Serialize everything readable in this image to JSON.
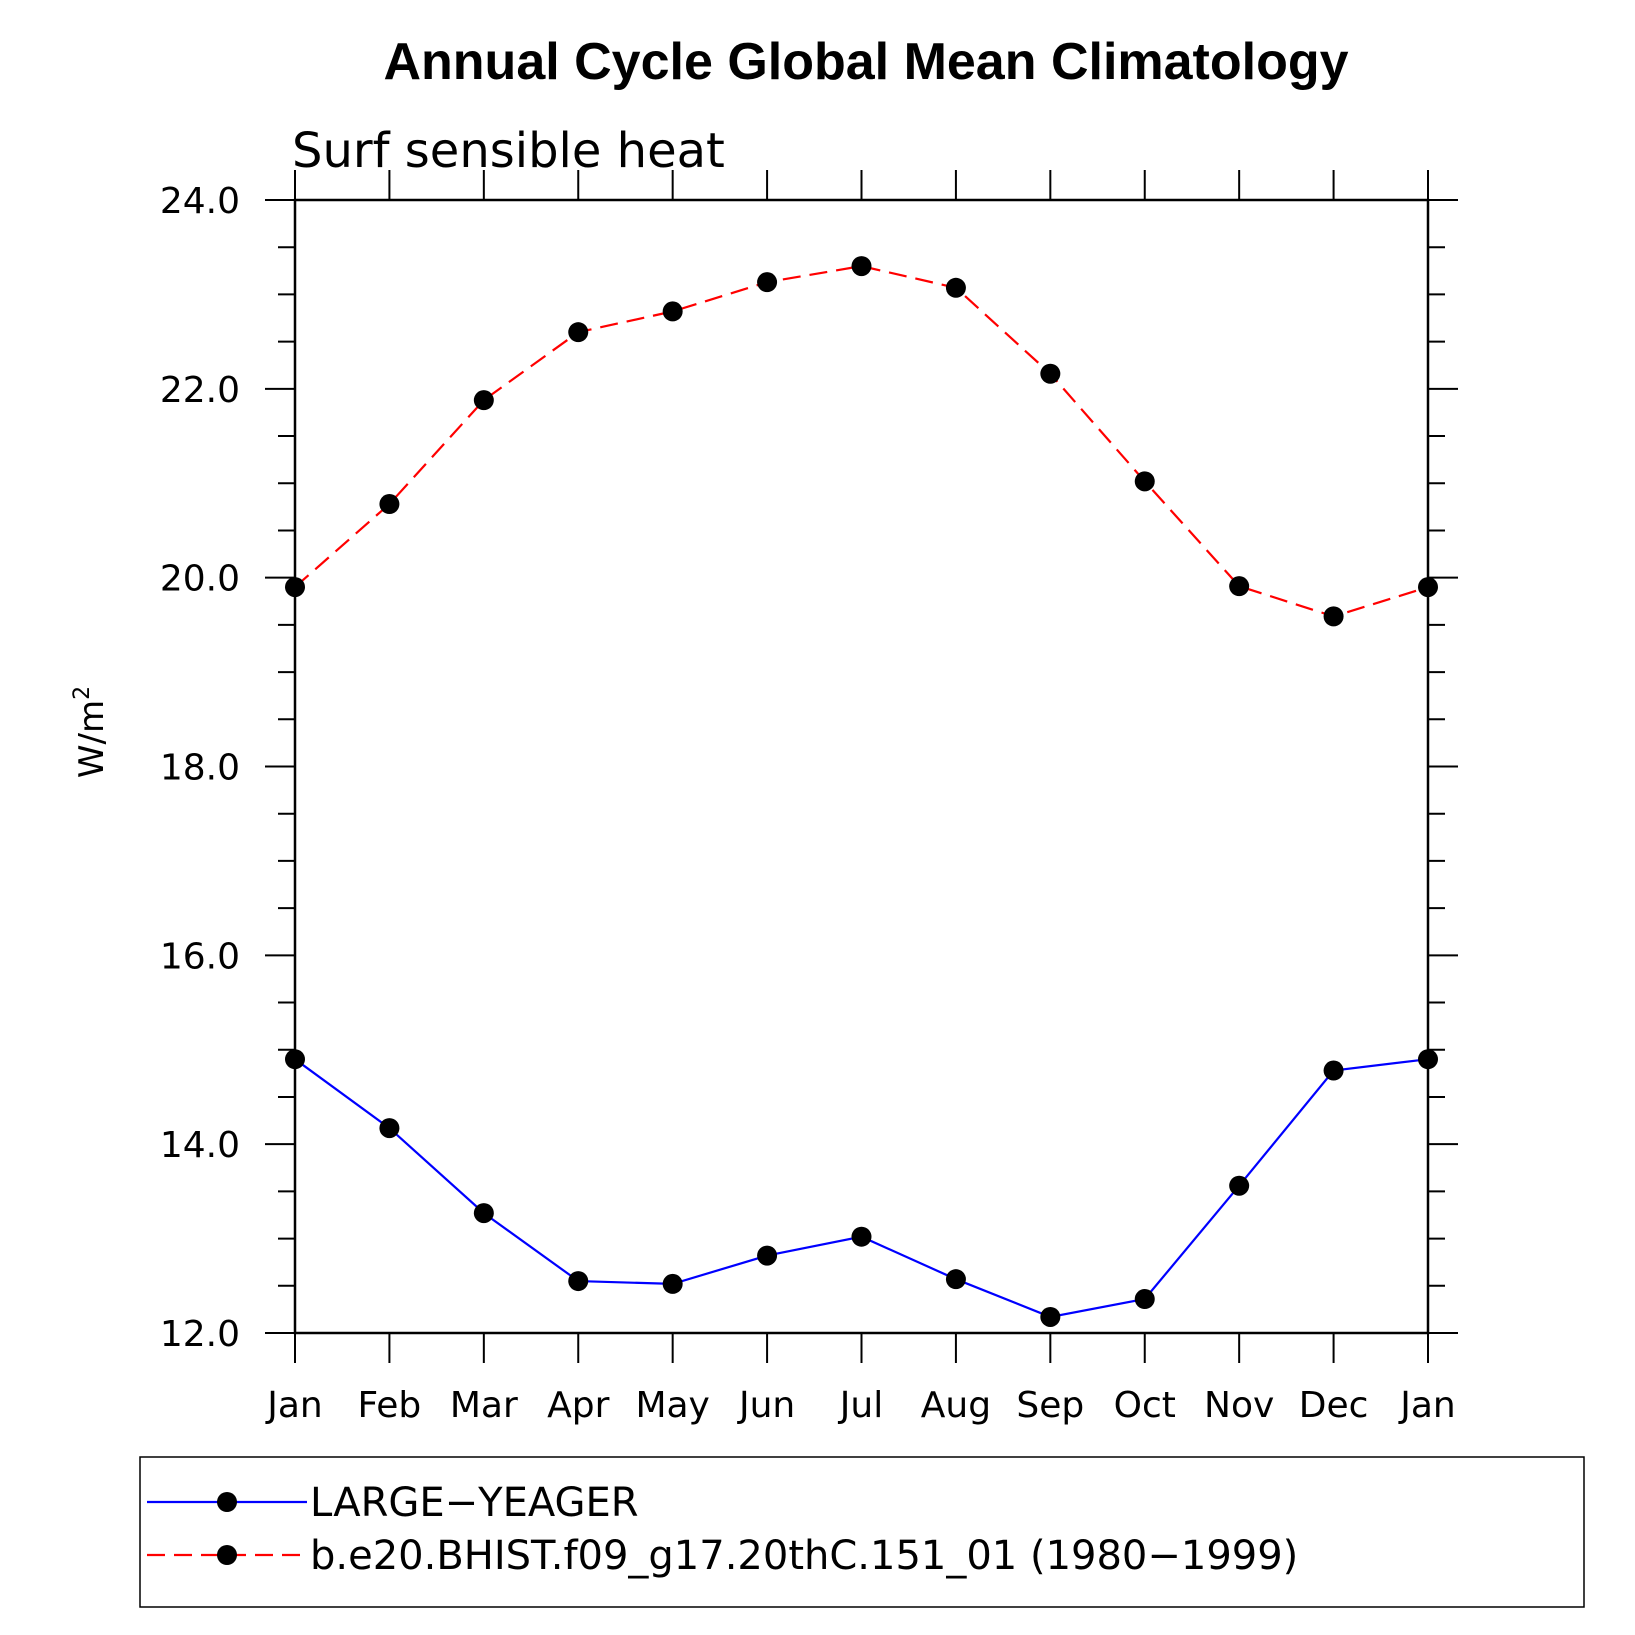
{
  "chart_data": {
    "type": "line",
    "title": "Annual Cycle Global Mean Climatology",
    "subtitle": "Surf sensible heat",
    "ylabel": "W/m",
    "ylabel_sup": "2",
    "xlabel": "",
    "categories": [
      "Jan",
      "Feb",
      "Mar",
      "Apr",
      "May",
      "Jun",
      "Jul",
      "Aug",
      "Sep",
      "Oct",
      "Nov",
      "Dec",
      "Jan"
    ],
    "ylim": [
      12.0,
      24.0
    ],
    "yticks": [
      "12.0",
      "14.0",
      "16.0",
      "18.0",
      "20.0",
      "22.0",
      "24.0"
    ],
    "grid": false,
    "legend_position": "bottom",
    "series": [
      {
        "name": "LARGE−YEAGER",
        "color": "#0000ff",
        "dash": "solid",
        "values": [
          14.9,
          14.17,
          13.27,
          12.55,
          12.52,
          12.82,
          13.02,
          12.57,
          12.17,
          12.36,
          13.56,
          14.78,
          14.9
        ]
      },
      {
        "name": "b.e20.BHIST.f09_g17.20thC.151_01 (1980−1999)",
        "color": "#ff0000",
        "dash": "dashed",
        "values": [
          19.9,
          20.78,
          21.88,
          22.6,
          22.82,
          23.13,
          23.3,
          23.07,
          22.16,
          21.02,
          19.91,
          19.59,
          19.9
        ]
      }
    ]
  }
}
